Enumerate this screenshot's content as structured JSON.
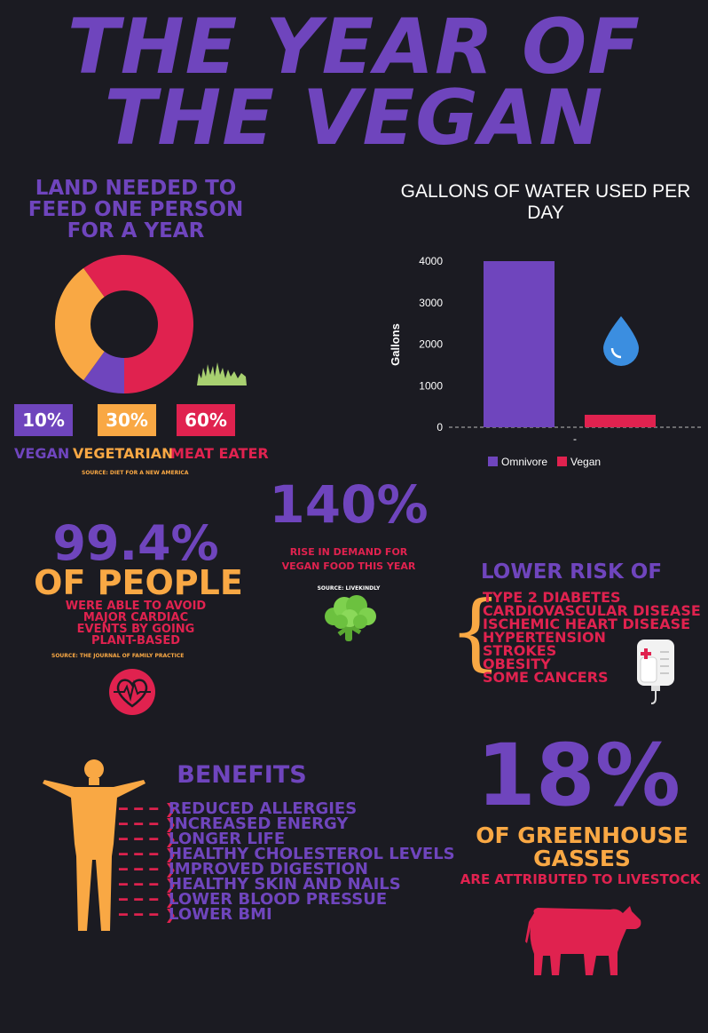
{
  "title": {
    "line1": "THE YEAR OF",
    "line2": "THE VEGAN"
  },
  "land": {
    "heading": [
      "LAND NEEDED TO",
      "FEED ONE PERSON",
      "FOR A YEAR"
    ],
    "source": "SOURCE: DIET FOR A NEW AMERICA",
    "colors": {
      "vegan": "#6f45bd",
      "vegetarian": "#f9a844",
      "meat": "#e0224f"
    }
  },
  "chart_data": [
    {
      "type": "pie",
      "title": "LAND NEEDED TO FEED ONE PERSON FOR A YEAR",
      "labels": [
        "VEGAN",
        "VEGETARIAN",
        "MEAT EATER"
      ],
      "values": [
        10,
        30,
        60
      ],
      "value_labels": [
        "10%",
        "30%",
        "60%"
      ],
      "colors": [
        "#6f45bd",
        "#f9a844",
        "#e0224f"
      ],
      "donut": true
    },
    {
      "type": "bar",
      "title": "GALLONS OF WATER USED PER DAY",
      "categories": [
        "-"
      ],
      "series": [
        {
          "name": "Omnivore",
          "values": [
            4000
          ],
          "color": "#6f45bd"
        },
        {
          "name": "Vegan",
          "values": [
            300
          ],
          "color": "#e0224f"
        }
      ],
      "ylabel": "Gallons",
      "ylim": [
        0,
        4000
      ],
      "yticks": [
        "0",
        "1000",
        "2000",
        "3000",
        "4000"
      ],
      "legend": "bottom"
    }
  ],
  "water": {
    "title": "GALLONS OF WATER USED PER DAY",
    "ylabel": "Gallons",
    "xtick": "-"
  },
  "people": {
    "big": "99.4%",
    "sub": "OF PEOPLE",
    "desc": [
      "WERE ABLE TO AVOID",
      "MAJOR CARDIAC",
      "EVENTS BY GOING",
      "PLANT-BASED"
    ],
    "source": "SOURCE:  THE JOURNAL OF FAMILY PRACTICE"
  },
  "demand": {
    "big": "140%",
    "desc": [
      "RISE IN DEMAND FOR",
      "VEGAN FOOD THIS YEAR"
    ],
    "source": "SOURCE: LIVEKINDLY"
  },
  "risk": {
    "heading": "LOWER RISK OF",
    "items": [
      "TYPE 2 DIABETES",
      "CARDIOVASCULAR DISEASE",
      "ISCHEMIC HEART DISEASE",
      "HYPERTENSION",
      "STROKES",
      "OBESITY",
      "SOME CANCERS"
    ]
  },
  "benefits": {
    "heading": "BENEFITS",
    "items": [
      "REDUCED ALLERGIES",
      "INCREASED ENERGY",
      "LONGER LIFE",
      "HEALTHY CHOLESTEROL LEVELS",
      "IMPROVED DIGESTION",
      "HEALTHY SKIN AND NAILS",
      "LOWER BLOOD PRESSUE",
      "LOWER BMI"
    ]
  },
  "greenhouse": {
    "big": "18%",
    "sub": [
      "OF GREENHOUSE",
      "GASSES"
    ],
    "desc": "ARE ATTRIBUTED TO LIVESTOCK"
  }
}
